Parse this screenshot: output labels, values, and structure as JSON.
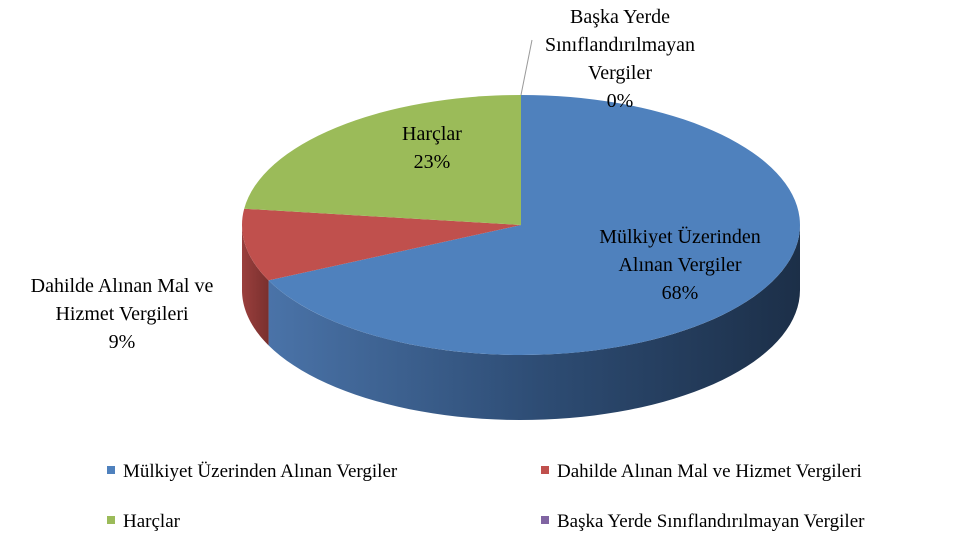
{
  "chart_data": {
    "type": "pie3d",
    "categories": [
      "Mülkiyet Üzerinden Alınan Vergiler",
      "Dahilde Alınan Mal ve Hizmet Vergileri",
      "Harçlar",
      "Başka Yerde Sınıflandırılmayan Vergiler"
    ],
    "values": [
      68,
      9,
      23,
      0
    ],
    "value_labels": [
      "68%",
      "9%",
      "23%",
      "0%"
    ],
    "colors": [
      "#4f81bd",
      "#c0504d",
      "#9bbb59",
      "#8064a2"
    ],
    "legend": "bottom"
  }
}
